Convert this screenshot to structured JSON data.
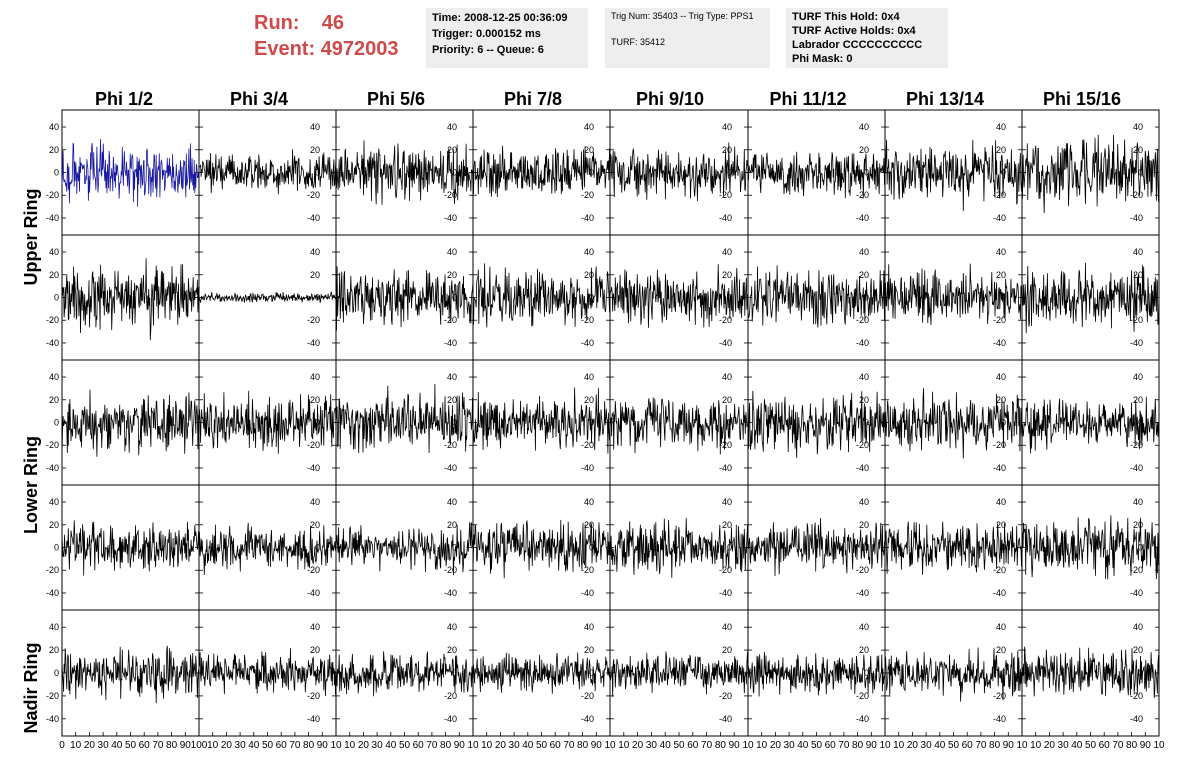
{
  "header": {
    "run_label": "Run:",
    "run_value": "46",
    "event_label": "Event:",
    "event_value": "4972003"
  },
  "info_boxes": {
    "time": "Time: 2008-12-25 00:36:09",
    "trigger": "Trigger: 0.000152 ms",
    "priority": "Priority: 6 -- Queue: 6",
    "trig_num": "Trig Num: 35403 -- Trig Type: PPS1",
    "turf": "TURF: 35412",
    "turf_hold": "TURF This Hold: 0x4",
    "turf_active": "TURF Active Holds: 0x4",
    "labrador": "Labrador CCCCCCCCCC",
    "phi_mask": "Phi Mask: 0"
  },
  "ring_labels": [
    "Upper Ring",
    "Lower Ring",
    "Nadir Ring"
  ],
  "colors": {
    "highlight_trace": "#1a1aa0",
    "trace": "#000000",
    "header_red": "#cf4a4a",
    "box_bg": "#eeeeee"
  },
  "chart_data": {
    "type": "line",
    "title": "",
    "columns": [
      "Phi 1/2",
      "Phi 3/4",
      "Phi 5/6",
      "Phi 7/8",
      "Phi 9/10",
      "Phi 11/12",
      "Phi 13/14",
      "Phi 15/16"
    ],
    "rows": 5,
    "xlim": [
      0,
      100
    ],
    "ylim": [
      -55,
      55
    ],
    "x_ticks": [
      0,
      10,
      20,
      30,
      40,
      50,
      60,
      70,
      80,
      90,
      100
    ],
    "x_tick_labels_first": [
      "0",
      "10",
      "20",
      "30",
      "40",
      "50",
      "60",
      "70",
      "80",
      "90",
      "100"
    ],
    "x_tick_labels_other": [
      "10",
      "20",
      "30",
      "40",
      "50",
      "60",
      "70",
      "80",
      "90",
      "10"
    ],
    "y_ticks": [
      -40,
      -20,
      0,
      20,
      40
    ],
    "y_tick_labels": [
      "-40",
      "-20",
      "0",
      "20",
      "40"
    ],
    "samples_per_trace": 260,
    "highlighted_panel": {
      "row": 0,
      "col": 0
    },
    "panels": [
      [
        {
          "amp": 12
        },
        {
          "amp": 8
        },
        {
          "amp": 11
        },
        {
          "amp": 10
        },
        {
          "amp": 10
        },
        {
          "amp": 9
        },
        {
          "amp": 12
        },
        {
          "amp": 13
        }
      ],
      [
        {
          "amp": 13
        },
        {
          "amp": 2
        },
        {
          "amp": 12
        },
        {
          "amp": 12
        },
        {
          "amp": 12
        },
        {
          "amp": 11
        },
        {
          "amp": 11
        },
        {
          "amp": 13
        }
      ],
      [
        {
          "amp": 11
        },
        {
          "amp": 11
        },
        {
          "amp": 12
        },
        {
          "amp": 11
        },
        {
          "amp": 11
        },
        {
          "amp": 12
        },
        {
          "amp": 12
        },
        {
          "amp": 10
        }
      ],
      [
        {
          "amp": 10
        },
        {
          "amp": 9
        },
        {
          "amp": 9
        },
        {
          "amp": 11
        },
        {
          "amp": 11
        },
        {
          "amp": 10
        },
        {
          "amp": 10
        },
        {
          "amp": 12
        }
      ],
      [
        {
          "amp": 10
        },
        {
          "amp": 8
        },
        {
          "amp": 8
        },
        {
          "amp": 8
        },
        {
          "amp": 8
        },
        {
          "amp": 9
        },
        {
          "amp": 9
        },
        {
          "amp": 10
        }
      ]
    ]
  }
}
